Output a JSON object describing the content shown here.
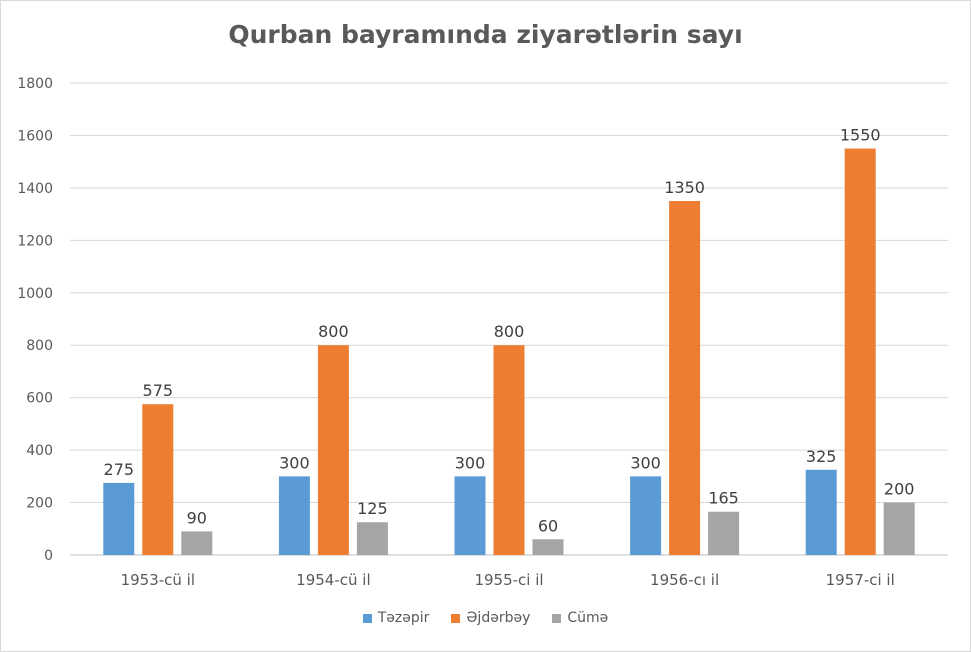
{
  "chart_data": {
    "type": "bar",
    "title": "Qurban bayramında ziyarətlərin sayı",
    "categories": [
      "1953-cü il",
      "1954-cü il",
      "1955-ci il",
      "1956-cı il",
      "1957-ci il"
    ],
    "series": [
      {
        "name": "Təzəpir",
        "color": "#5b9bd5",
        "values": [
          275,
          300,
          300,
          300,
          325
        ]
      },
      {
        "name": "Əjdərbəy",
        "color": "#ed7d31",
        "values": [
          575,
          800,
          800,
          1350,
          1550
        ]
      },
      {
        "name": "Cümə",
        "color": "#a5a5a5",
        "values": [
          90,
          125,
          60,
          165,
          200
        ]
      }
    ],
    "ylim": [
      0,
      1800
    ],
    "yticks": [
      0,
      200,
      400,
      600,
      800,
      1000,
      1200,
      1400,
      1600,
      1800
    ],
    "grid": true,
    "legend_position": "bottom",
    "data_labels": true
  }
}
